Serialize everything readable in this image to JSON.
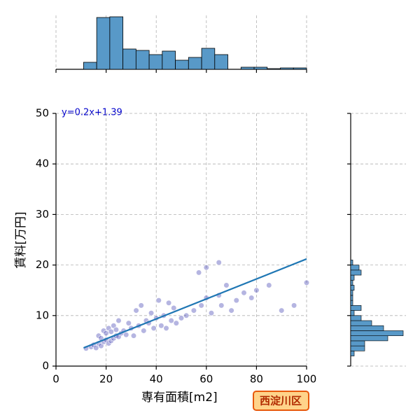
{
  "chart_data": {
    "type": "scatter",
    "x_label": "専有面積[m2]",
    "y_label": "賃料[万円]",
    "annotation": "y=0.2x+1.39",
    "badge": "西淀川区",
    "xlim": [
      0,
      100
    ],
    "xticks": [
      0,
      20,
      40,
      60,
      80,
      100
    ],
    "ylim": [
      0,
      50
    ],
    "yticks": [
      0,
      10,
      20,
      30,
      40,
      50
    ],
    "grid": true,
    "series": [
      {
        "color": "#2a2aa8",
        "x": [
          12,
          14,
          15,
          16,
          17,
          17,
          18,
          18,
          19,
          19,
          20,
          20,
          21,
          21,
          22,
          22,
          23,
          23,
          24,
          24,
          25,
          25,
          26,
          27,
          28,
          29,
          30,
          31,
          32,
          33,
          34,
          35,
          36,
          37,
          38,
          39,
          40,
          41,
          42,
          43,
          44,
          45,
          46,
          47,
          48,
          50,
          52,
          55,
          57,
          58,
          60,
          60,
          62,
          65,
          65,
          66,
          68,
          70,
          72,
          75,
          78,
          80,
          85,
          90,
          95,
          100
        ],
        "y": [
          3.5,
          3.8,
          4.2,
          3.6,
          4.5,
          6.0,
          4.0,
          5.5,
          4.8,
          7.0,
          5.2,
          6.5,
          4.5,
          7.5,
          5.0,
          6.8,
          5.5,
          8.0,
          6.0,
          7.2,
          5.8,
          9.0,
          6.5,
          7.0,
          6.2,
          8.5,
          7.5,
          6.0,
          11.0,
          8.0,
          12.0,
          7.0,
          9.0,
          8.5,
          10.5,
          7.5,
          9.5,
          13.0,
          8.0,
          10.0,
          7.5,
          12.5,
          9.0,
          11.5,
          8.5,
          9.5,
          10.0,
          11.0,
          18.5,
          12.0,
          13.5,
          19.5,
          10.5,
          20.5,
          14.0,
          12.0,
          16.0,
          11.0,
          13.0,
          14.5,
          13.5,
          15.0,
          16.0,
          11.0,
          12.0,
          16.5
        ]
      }
    ],
    "regression": {
      "color": "#1f77b4",
      "x": [
        11,
        100
      ],
      "y": [
        3.6,
        21.2
      ]
    },
    "x_histogram": {
      "color": "#5899c8",
      "bins": [
        11,
        16.24,
        21.47,
        26.71,
        31.94,
        37.18,
        42.41,
        47.65,
        52.88,
        58.12,
        63.35,
        68.59,
        73.82,
        79.06,
        84.29,
        89.53,
        94.76,
        100
      ],
      "counts": [
        10,
        74,
        75,
        29,
        27,
        21,
        26,
        13,
        17,
        30,
        21,
        0,
        3,
        3,
        1,
        2,
        2
      ]
    },
    "y_histogram": {
      "color": "#5899c8",
      "bins": [
        2,
        3,
        4,
        5,
        6,
        7,
        8,
        9,
        10,
        11,
        12,
        13,
        14,
        15,
        16,
        17,
        18,
        19,
        20,
        21
      ],
      "counts": [
        5,
        20,
        20,
        53,
        75,
        47,
        30,
        15,
        5,
        15,
        3,
        3,
        3,
        5,
        3,
        5,
        15,
        12,
        3
      ]
    }
  }
}
